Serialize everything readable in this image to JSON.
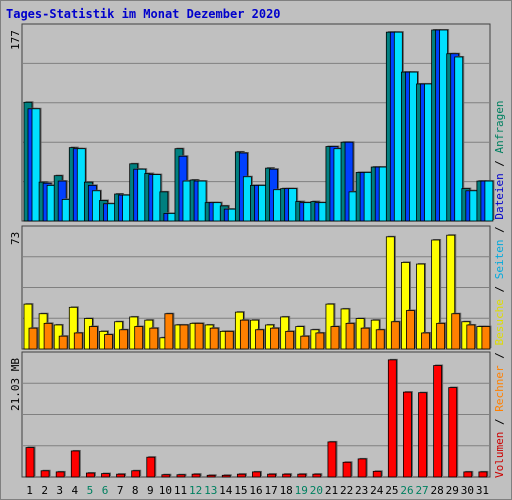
{
  "title": "Tages-Statistik im Monat Dezember 2020",
  "legend": [
    {
      "label": "Anfragen",
      "color": "#008060"
    },
    {
      "label": "Dateien",
      "color": "#0000cc"
    },
    {
      "label": "Seiten",
      "color": "#00aadd"
    },
    {
      "label": "Besuche",
      "color": "#dddd00"
    },
    {
      "label": "Rechner",
      "color": "#ff8000"
    },
    {
      "label": "Volumen",
      "color": "#cc0000"
    }
  ],
  "legend_sep": " / ",
  "colors": {
    "hits": "#008080",
    "files": "#0040ff",
    "pages": "#00e0ff",
    "visits": "#ffff00",
    "sites": "#ff8000",
    "volume": "#ff0000",
    "bg": "#c0c0c0",
    "grid": "#808080",
    "weekend": "#008060"
  },
  "chart_data": {
    "type": "bar",
    "x": [
      "1",
      "2",
      "3",
      "4",
      "5",
      "6",
      "7",
      "8",
      "9",
      "10",
      "11",
      "12",
      "13",
      "14",
      "15",
      "16",
      "17",
      "18",
      "19",
      "20",
      "21",
      "22",
      "23",
      "24",
      "25",
      "26",
      "27",
      "28",
      "29",
      "30",
      "31"
    ],
    "weekend_days": [
      "5",
      "6",
      "12",
      "13",
      "19",
      "20",
      "26",
      "27"
    ],
    "panels": [
      {
        "ymax_label": "177",
        "ymax": 177,
        "series": [
          {
            "name": "Anfragen",
            "key": "hits",
            "values": [
              110,
              36,
              42,
              68,
              36,
              19,
              25,
              53,
              44,
              27,
              67,
              38,
              17,
              14,
              64,
              33,
              49,
              30,
              18,
              18,
              69,
              73,
              45,
              50,
              175,
              138,
              127,
              177,
              155,
              30,
              37
            ]
          },
          {
            "name": "Dateien",
            "key": "files",
            "values": [
              104,
              35,
              37,
              67,
              33,
              16,
              24,
              48,
              43,
              7,
              60,
              37,
              17,
              11,
              63,
              33,
              48,
              30,
              17,
              17,
              69,
              73,
              45,
              50,
              175,
              138,
              127,
              177,
              155,
              28,
              37
            ]
          },
          {
            "name": "Seiten",
            "key": "pages",
            "values": [
              104,
              33,
              20,
              67,
              28,
              16,
              24,
              48,
              43,
              7,
              37,
              37,
              17,
              11,
              41,
              33,
              29,
              30,
              17,
              17,
              67,
              27,
              45,
              50,
              175,
              138,
              127,
              177,
              152,
              28,
              37
            ]
          }
        ]
      },
      {
        "ymax_label": "73",
        "ymax": 73,
        "series": [
          {
            "name": "Besuche",
            "key": "visits",
            "values": [
              28,
              22,
              15,
              26,
              19,
              11,
              17,
              20,
              18,
              7,
              15,
              16,
              15,
              11,
              23,
              18,
              15,
              20,
              14,
              12,
              28,
              25,
              19,
              18,
              70,
              54,
              53,
              68,
              71,
              17,
              14
            ]
          },
          {
            "name": "Rechner",
            "key": "sites",
            "values": [
              13,
              16,
              8,
              10,
              14,
              9,
              12,
              14,
              13,
              22,
              15,
              16,
              13,
              11,
              18,
              12,
              13,
              11,
              8,
              10,
              14,
              16,
              13,
              12,
              17,
              24,
              10,
              16,
              22,
              15,
              14
            ]
          }
        ]
      },
      {
        "ymax_label": "21.03 MB",
        "ymax": 21.03,
        "series": [
          {
            "name": "Volumen",
            "key": "volume",
            "values": [
              5.2,
              1.1,
              0.9,
              4.6,
              0.7,
              0.6,
              0.5,
              1.1,
              3.5,
              0.4,
              0.4,
              0.5,
              0.3,
              0.3,
              0.5,
              0.9,
              0.5,
              0.5,
              0.5,
              0.5,
              6.2,
              2.6,
              3.2,
              1.0,
              20.7,
              15.0,
              14.9,
              19.7,
              15.8,
              0.9,
              0.9
            ]
          }
        ]
      }
    ]
  }
}
